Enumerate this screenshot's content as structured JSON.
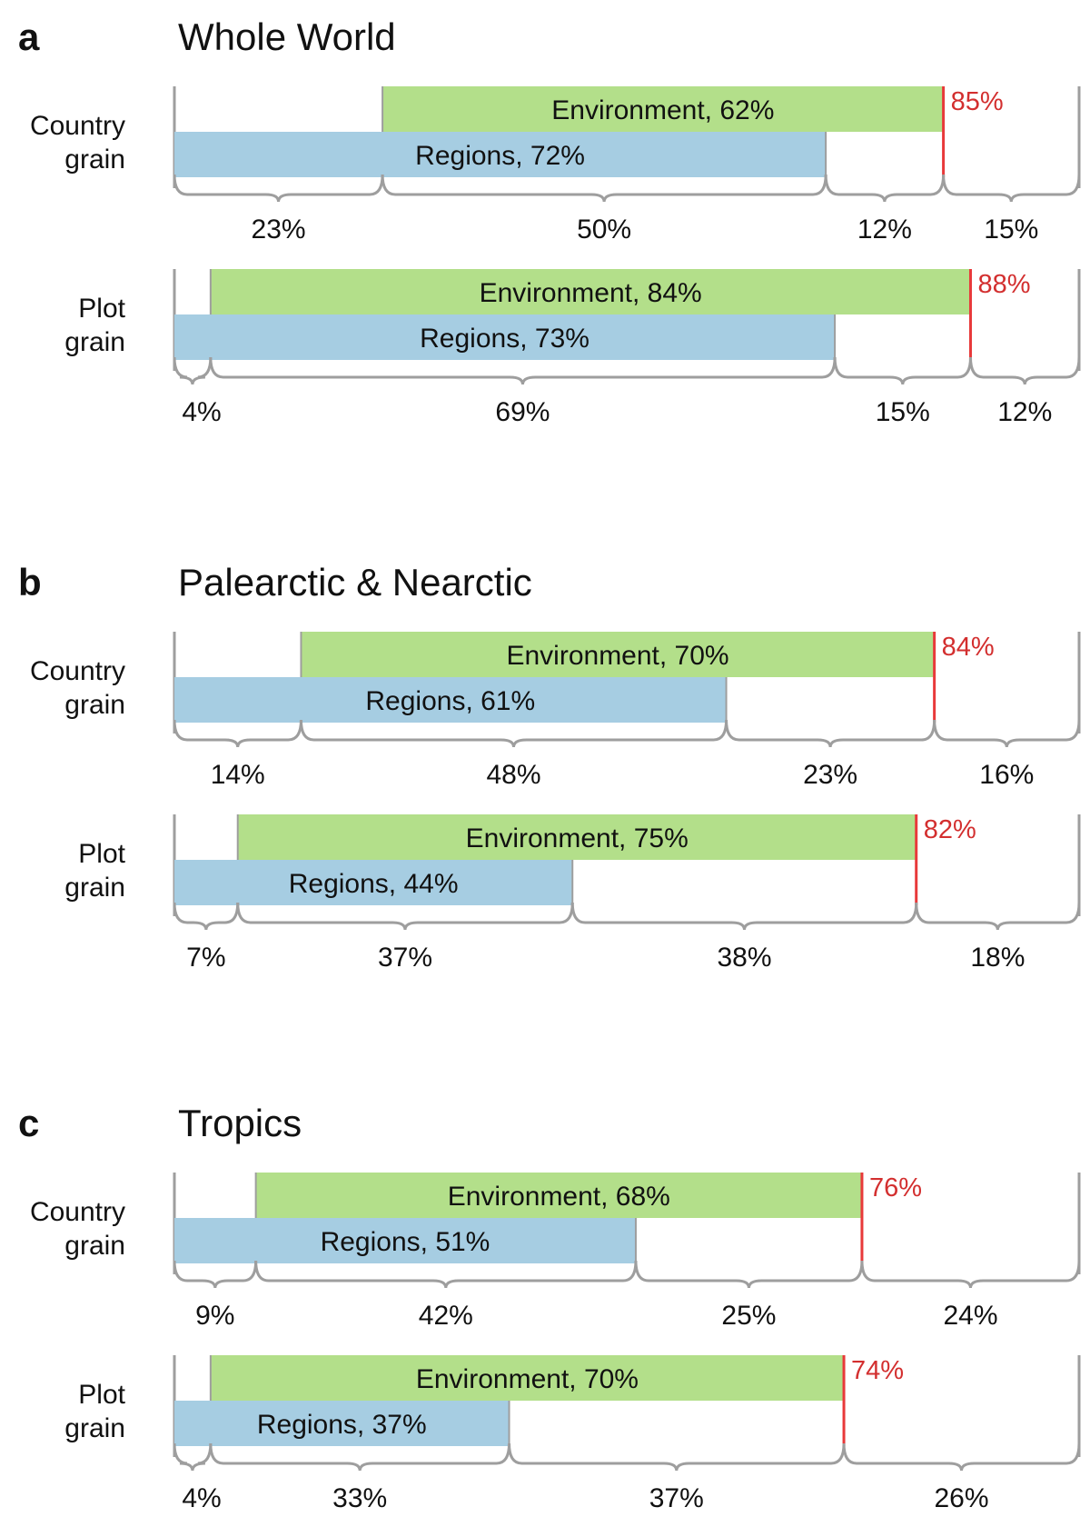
{
  "chart_data": [
    {
      "type": "bar",
      "panel_letter": "a",
      "title": "Whole World",
      "rows": [
        {
          "label_line1": "Country",
          "label_line2": "grain",
          "environment": {
            "label": "Environment, 62%",
            "start": 23,
            "end": 85
          },
          "regions": {
            "label": "Regions, 72%",
            "start": 0,
            "end": 72
          },
          "total": {
            "label": "85%",
            "value": 85
          },
          "segments": [
            {
              "label": "23%",
              "start": 0,
              "end": 23
            },
            {
              "label": "50%",
              "start": 23,
              "end": 72
            },
            {
              "label": "12%",
              "start": 72,
              "end": 85
            },
            {
              "label": "15%",
              "start": 85,
              "end": 100
            }
          ]
        },
        {
          "label_line1": "Plot",
          "label_line2": "grain",
          "environment": {
            "label": "Environment, 84%",
            "start": 4,
            "end": 88
          },
          "regions": {
            "label": "Regions, 73%",
            "start": 0,
            "end": 73
          },
          "total": {
            "label": "88%",
            "value": 88
          },
          "segments": [
            {
              "label": "4%",
              "start": 0,
              "end": 4
            },
            {
              "label": "69%",
              "start": 4,
              "end": 73
            },
            {
              "label": "15%",
              "start": 73,
              "end": 88
            },
            {
              "label": "12%",
              "start": 88,
              "end": 100
            }
          ]
        }
      ]
    },
    {
      "type": "bar",
      "panel_letter": "b",
      "title": "Palearctic & Nearctic",
      "rows": [
        {
          "label_line1": "Country",
          "label_line2": "grain",
          "environment": {
            "label": "Environment, 70%",
            "start": 14,
            "end": 84
          },
          "regions": {
            "label": "Regions, 61%",
            "start": 0,
            "end": 61
          },
          "total": {
            "label": "84%",
            "value": 84
          },
          "segments": [
            {
              "label": "14%",
              "start": 0,
              "end": 14
            },
            {
              "label": "48%",
              "start": 14,
              "end": 61
            },
            {
              "label": "23%",
              "start": 61,
              "end": 84
            },
            {
              "label": "16%",
              "start": 84,
              "end": 100
            }
          ]
        },
        {
          "label_line1": "Plot",
          "label_line2": "grain",
          "environment": {
            "label": "Environment, 75%",
            "start": 7,
            "end": 82
          },
          "regions": {
            "label": "Regions, 44%",
            "start": 0,
            "end": 44
          },
          "total": {
            "label": "82%",
            "value": 82
          },
          "segments": [
            {
              "label": "7%",
              "start": 0,
              "end": 7
            },
            {
              "label": "37%",
              "start": 7,
              "end": 44
            },
            {
              "label": "38%",
              "start": 44,
              "end": 82
            },
            {
              "label": "18%",
              "start": 82,
              "end": 100
            }
          ]
        }
      ]
    },
    {
      "type": "bar",
      "panel_letter": "c",
      "title": "Tropics",
      "rows": [
        {
          "label_line1": "Country",
          "label_line2": "grain",
          "environment": {
            "label": "Environment, 68%",
            "start": 9,
            "end": 76
          },
          "regions": {
            "label": "Regions, 51%",
            "start": 0,
            "end": 51
          },
          "total": {
            "label": "76%",
            "value": 76
          },
          "segments": [
            {
              "label": "9%",
              "start": 0,
              "end": 9
            },
            {
              "label": "42%",
              "start": 9,
              "end": 51
            },
            {
              "label": "25%",
              "start": 51,
              "end": 76
            },
            {
              "label": "24%",
              "start": 76,
              "end": 100
            }
          ]
        },
        {
          "label_line1": "Plot",
          "label_line2": "grain",
          "environment": {
            "label": "Environment, 70%",
            "start": 4,
            "end": 74
          },
          "regions": {
            "label": "Regions, 37%",
            "start": 0,
            "end": 37
          },
          "total": {
            "label": "74%",
            "value": 74
          },
          "segments": [
            {
              "label": "4%",
              "start": 0,
              "end": 4
            },
            {
              "label": "33%",
              "start": 4,
              "end": 37
            },
            {
              "label": "37%",
              "start": 37,
              "end": 74
            },
            {
              "label": "26%",
              "start": 74,
              "end": 100
            }
          ]
        }
      ]
    }
  ],
  "colors": {
    "environment": "#b3df8a",
    "regions": "#a6cde2",
    "total_line": "#e8393a",
    "total_text": "#d32f2f",
    "bracket": "#9e9e9e",
    "text": "#111111"
  }
}
